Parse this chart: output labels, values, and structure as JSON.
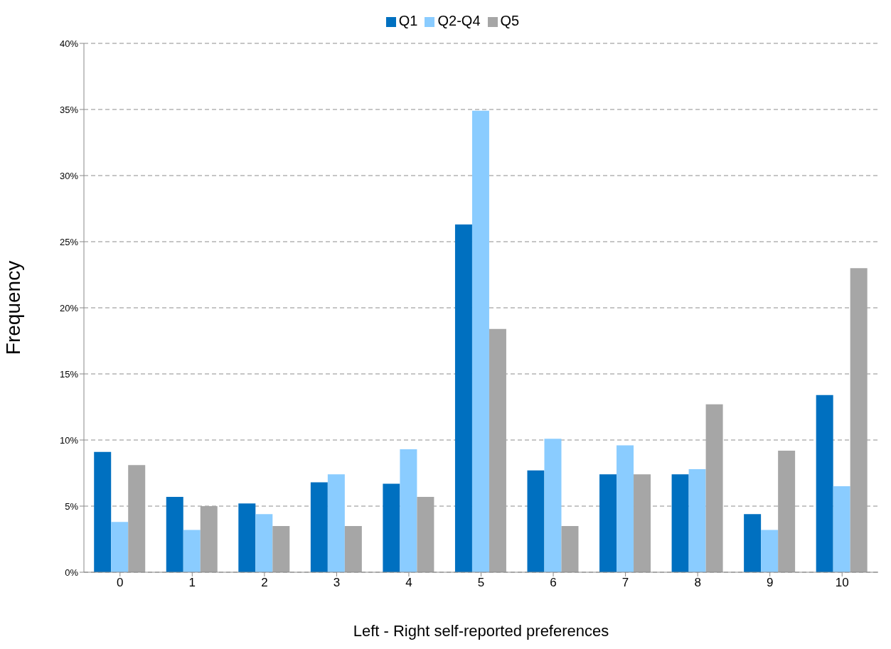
{
  "chart_data": {
    "type": "bar",
    "xlabel": "Left - Right self-reported preferences",
    "ylabel": "Frequency",
    "categories": [
      "0",
      "1",
      "2",
      "3",
      "4",
      "5",
      "6",
      "7",
      "8",
      "9",
      "10"
    ],
    "series": [
      {
        "name": "Q1",
        "color": "#0070c0",
        "values": [
          9.1,
          5.7,
          5.2,
          6.8,
          6.7,
          26.3,
          7.7,
          7.4,
          7.4,
          4.4,
          13.4
        ]
      },
      {
        "name": "Q2-Q4",
        "color": "#8accff",
        "values": [
          3.8,
          3.2,
          4.4,
          7.4,
          9.3,
          34.9,
          10.1,
          9.6,
          7.8,
          3.2,
          6.5
        ]
      },
      {
        "name": "Q5",
        "color": "#a6a6a6",
        "values": [
          8.1,
          5.0,
          3.5,
          3.5,
          5.7,
          18.4,
          3.5,
          7.4,
          12.7,
          9.2,
          23.0
        ]
      }
    ],
    "ylim": [
      0,
      40
    ],
    "yticks": [
      {
        "value": 0,
        "label": "0%"
      },
      {
        "value": 5,
        "label": "5%"
      },
      {
        "value": 10,
        "label": "10%"
      },
      {
        "value": 15,
        "label": "15%"
      },
      {
        "value": 20,
        "label": "20%"
      },
      {
        "value": 25,
        "label": "25%"
      },
      {
        "value": 30,
        "label": "30%"
      },
      {
        "value": 35,
        "label": "35%"
      },
      {
        "value": 40,
        "label": "40%"
      }
    ],
    "grid": "y",
    "legend": "top"
  }
}
